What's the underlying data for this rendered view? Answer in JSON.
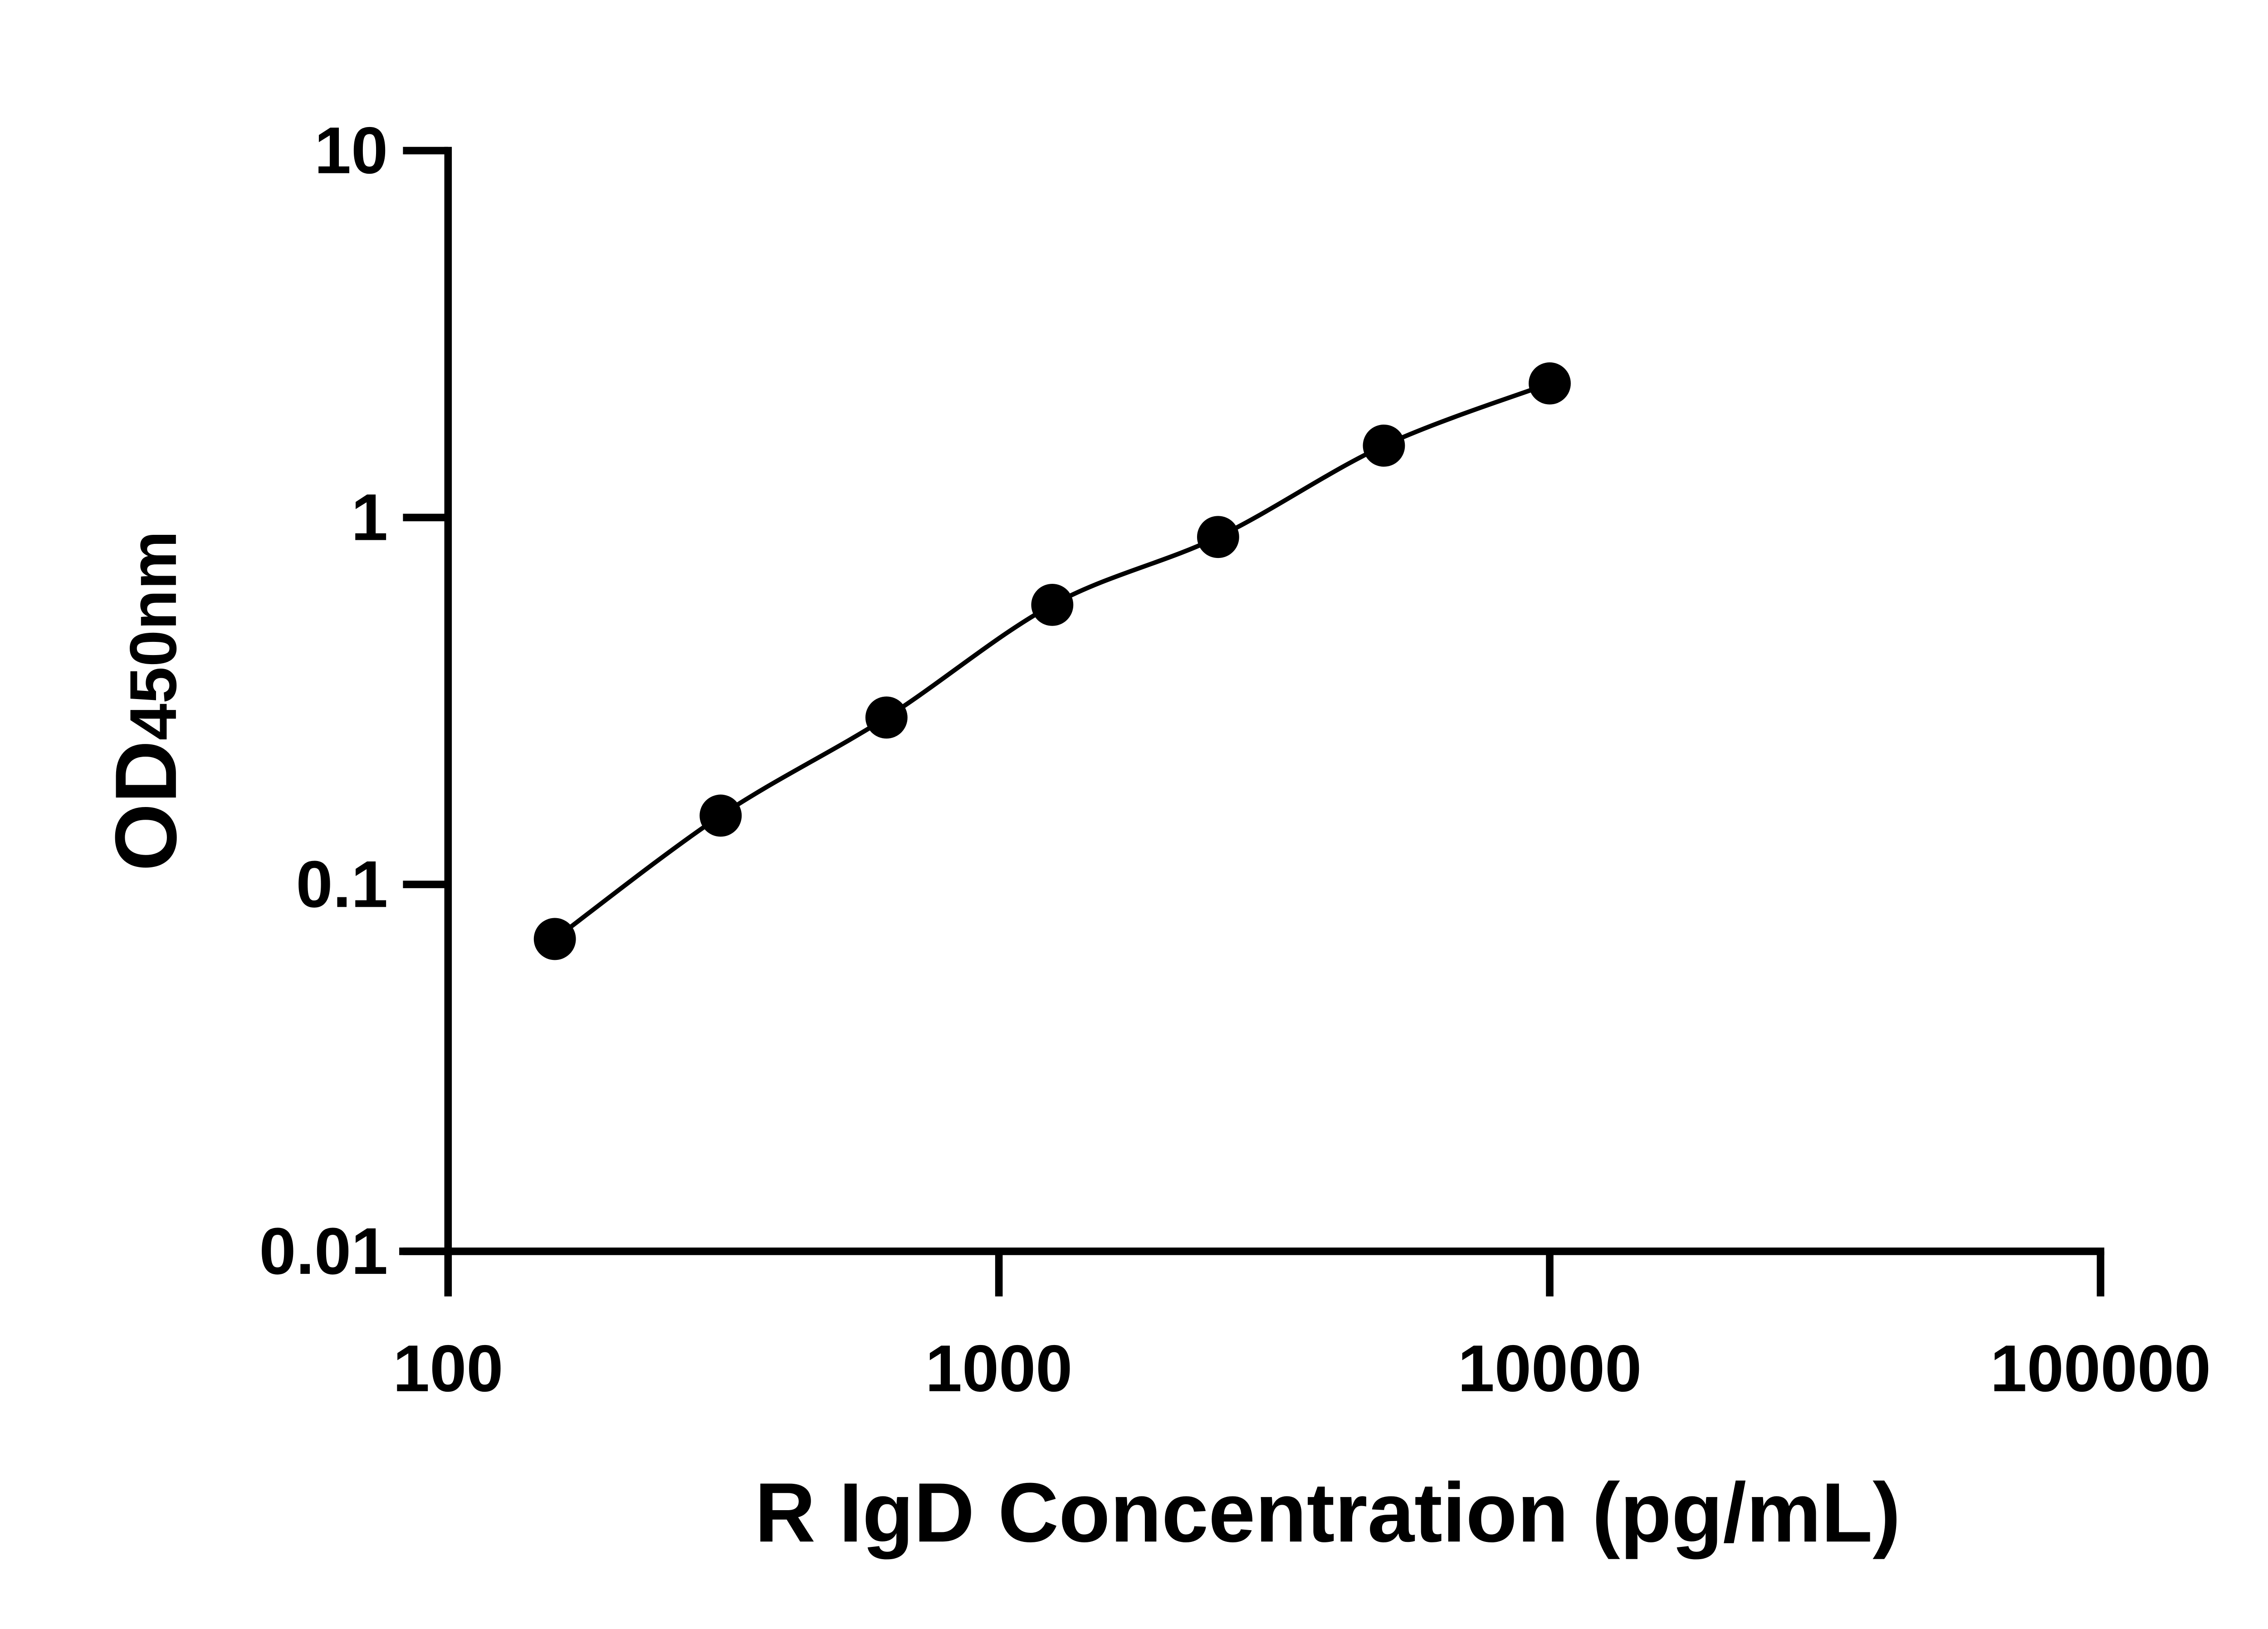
{
  "chart_data": {
    "type": "scatter",
    "title": "",
    "xlabel": "R IgD Concentration (pg/mL)",
    "ylabel_main": "OD",
    "ylabel_sub": "450nm",
    "x_scale": "log",
    "y_scale": "log",
    "xlim": [
      100,
      100000
    ],
    "ylim": [
      0.01,
      10
    ],
    "x_ticks": [
      "100",
      "1000",
      "10000",
      "100000"
    ],
    "y_ticks": [
      "0.01",
      "0.1",
      "1",
      "10"
    ],
    "grid": false,
    "legend": "none",
    "fit_line": true,
    "colors": {
      "points": "#000000",
      "line": "#000000",
      "axes": "#000000"
    },
    "series": [
      {
        "x": [
          156.25,
          312.5,
          625,
          1250,
          2500,
          5000,
          10000
        ],
        "y": [
          0.071,
          0.154,
          0.285,
          0.578,
          0.885,
          1.57,
          2.32
        ]
      }
    ]
  }
}
